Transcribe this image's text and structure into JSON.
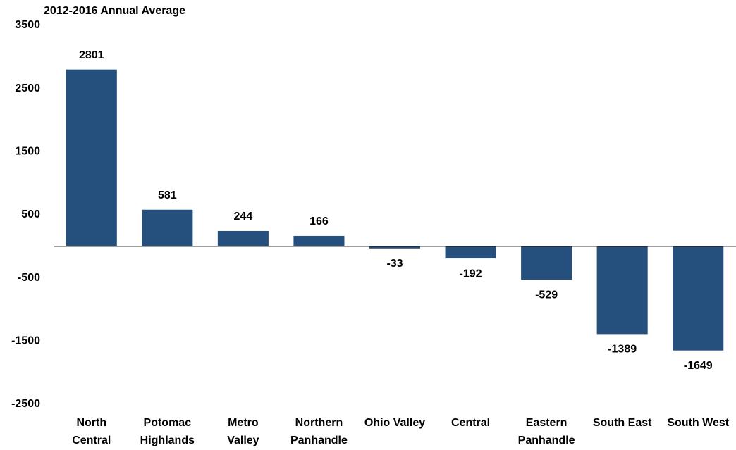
{
  "chart_data": {
    "type": "bar",
    "title": "2012-2016 Annual Average",
    "categories": [
      "North\nCentral",
      "Potomac\nHighlands",
      "Metro\nValley",
      "Northern\nPanhandle",
      "Ohio Valley",
      "Central",
      "Eastern\nPanhandle",
      "South East",
      "South West"
    ],
    "values": [
      2801,
      581,
      244,
      166,
      -33,
      -192,
      -529,
      -1389,
      -1649
    ],
    "color": "#254f7c",
    "ylim": [
      -2500,
      3500
    ],
    "yticks": [
      3500,
      2500,
      1500,
      500,
      -500,
      -1500,
      -2500
    ],
    "grid": false
  }
}
